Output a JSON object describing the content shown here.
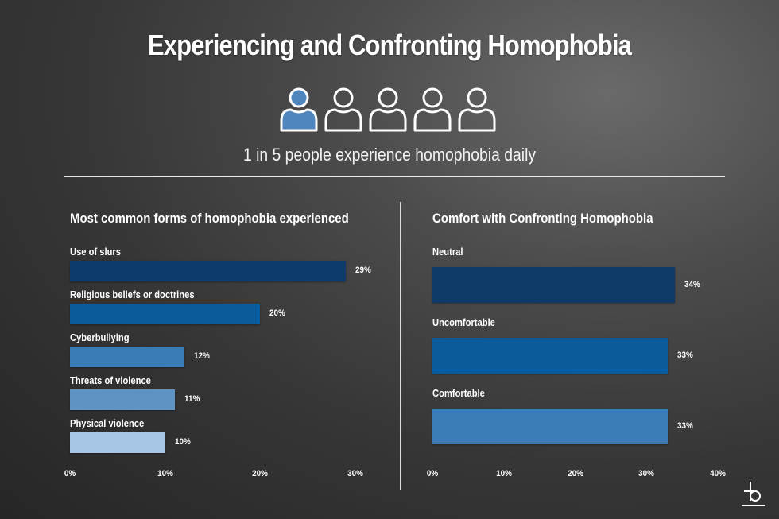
{
  "title": "Experiencing and Confronting Homophobia",
  "icon_row": {
    "icon": "person-icon",
    "total": 5,
    "highlighted": 1,
    "highlight_color": "#4f86bd",
    "outline_color": "#ffffff"
  },
  "subtitle": "1 in 5 people experience homophobia daily",
  "chart_data": [
    {
      "type": "bar",
      "orientation": "horizontal",
      "title": "Most common forms of homophobia experienced",
      "categories": [
        "Use of slurs",
        "Religious beliefs or doctrines",
        "Cyberbullying",
        "Threats of violence",
        "Physical violence"
      ],
      "values": [
        29,
        20,
        12,
        11,
        10
      ],
      "value_labels": [
        "29%",
        "20%",
        "12%",
        "11%",
        "10%"
      ],
      "colors": [
        "#0d3c6a",
        "#0b5a9c",
        "#3a7cb6",
        "#5e93c4",
        "#a6c6e3"
      ],
      "xlim": [
        0,
        30
      ],
      "xticks": [
        "0%",
        "10%",
        "20%",
        "30%"
      ],
      "xlabel": "",
      "ylabel": "",
      "grid": false,
      "legend": "none"
    },
    {
      "type": "bar",
      "orientation": "horizontal",
      "title": "Comfort with Confronting Homophobia",
      "categories": [
        "Neutral",
        "Uncomfortable",
        "Comfortable"
      ],
      "values": [
        34,
        33,
        33
      ],
      "value_labels": [
        "34%",
        "33%",
        "33%"
      ],
      "colors": [
        "#0d3a66",
        "#0b5a9c",
        "#3b7db7"
      ],
      "xlim": [
        0,
        40
      ],
      "xticks": [
        "0%",
        "10%",
        "20%",
        "30%",
        "40%"
      ],
      "xlabel": "",
      "ylabel": "",
      "grid": false,
      "legend": "none"
    }
  ],
  "logo": "b-logo-icon"
}
